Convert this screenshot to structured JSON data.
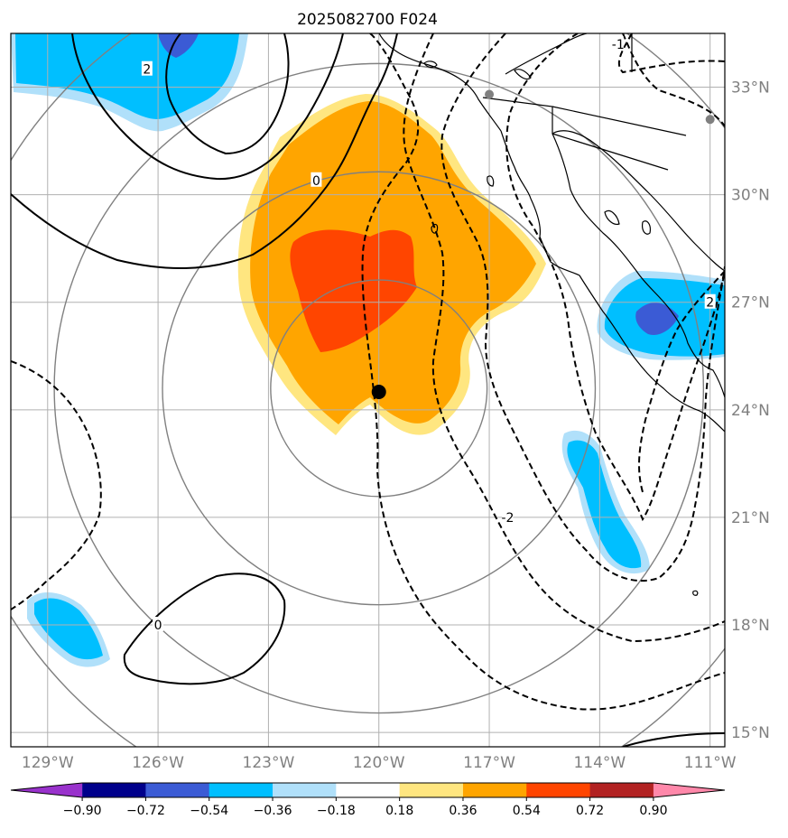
{
  "title": "2025082700 F024",
  "map": {
    "lon_min": -130.0,
    "lon_max": -110.6,
    "lat_min": 14.6,
    "lat_max": 34.5,
    "lon_ticks": [
      -129,
      -126,
      -123,
      -120,
      -117,
      -114,
      -111
    ],
    "lat_ticks": [
      15,
      18,
      21,
      24,
      27,
      30,
      33
    ],
    "lon_tick_labels": [
      "129°W",
      "126°W",
      "123°W",
      "120°W",
      "117°W",
      "114°W",
      "111°W"
    ],
    "lat_tick_labels": [
      "15°N",
      "18°N",
      "21°N",
      "24°N",
      "27°N",
      "30°N",
      "33°N"
    ],
    "grid": true,
    "center_marker": {
      "lon": -120.0,
      "lat": 24.5,
      "color": "#000000"
    },
    "city_markers": [
      {
        "lon": -117.0,
        "lat": 32.8,
        "color": "#808080"
      },
      {
        "lon": -111.0,
        "lat": 32.1,
        "color": "#808080"
      }
    ],
    "range_rings_deg": [
      3,
      6,
      9,
      12
    ],
    "contour_labels": [
      {
        "text": "2",
        "lon": -126.3,
        "lat": 33.5
      },
      {
        "text": "0",
        "lon": -121.7,
        "lat": 30.4
      },
      {
        "text": "0",
        "lon": -126.0,
        "lat": 18.0
      },
      {
        "text": "-2",
        "lon": -116.5,
        "lat": 21.0
      },
      {
        "text": "-1",
        "lon": -113.5,
        "lat": 34.2
      },
      {
        "text": "2",
        "lon": -111.0,
        "lat": 27.0
      }
    ]
  },
  "colorbar": {
    "colors": [
      "#9932cc",
      "#00008b",
      "#3b5bd5",
      "#00bfff",
      "#b0e0fa",
      "#ffffff",
      "#ffe680",
      "#ffa500",
      "#ff4500",
      "#b22222",
      "#ff88aa"
    ],
    "tick_labels": [
      "−0.90",
      "−0.72",
      "−0.54",
      "−0.36",
      "−0.18",
      "0.18",
      "0.36",
      "0.54",
      "0.72",
      "0.90"
    ]
  },
  "colors": {
    "orange": "#ffa500",
    "red_orange": "#ff4500",
    "pale_yellow": "#ffe680",
    "deep_sky": "#00bfff",
    "light_blue": "#b0e0fa",
    "royal_blue": "#3b5bd5",
    "grid": "#b0b0b0",
    "ring": "#808080"
  }
}
